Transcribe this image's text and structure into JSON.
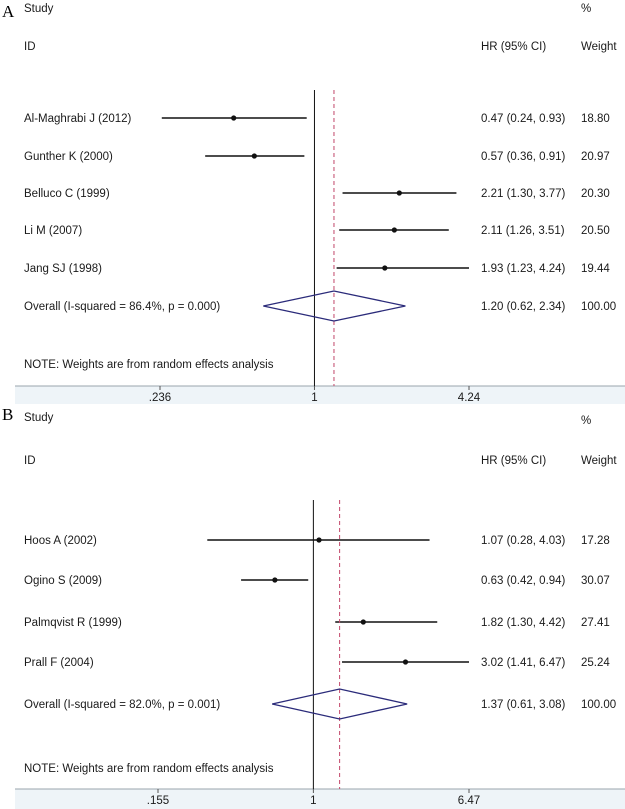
{
  "chart_data": [
    {
      "type": "forest",
      "panel_label": "A",
      "header": {
        "study": "Study",
        "id": "ID",
        "pct": "%",
        "hr": "HR (95% CI)",
        "weight": "Weight"
      },
      "x_scale": "log",
      "xlim": [
        0.236,
        4.24
      ],
      "ticks": [
        {
          "value": 0.236,
          "label": ".236"
        },
        {
          "value": 1,
          "label": "1"
        },
        {
          "value": 4.24,
          "label": "4.24"
        }
      ],
      "studies": [
        {
          "name": "Al-Maghrabi J (2012)",
          "hr": 0.47,
          "lower": 0.24,
          "upper": 0.93,
          "ci_text": "0.47 (0.24, 0.93)",
          "weight": "18.80"
        },
        {
          "name": "Gunther K (2000)",
          "hr": 0.57,
          "lower": 0.36,
          "upper": 0.91,
          "ci_text": "0.57 (0.36, 0.91)",
          "weight": "20.97"
        },
        {
          "name": "Belluco C (1999)",
          "hr": 2.21,
          "lower": 1.3,
          "upper": 3.77,
          "ci_text": "2.21 (1.30, 3.77)",
          "weight": "20.30"
        },
        {
          "name": "Li M (2007)",
          "hr": 2.11,
          "lower": 1.26,
          "upper": 3.51,
          "ci_text": "2.11 (1.26, 3.51)",
          "weight": "20.50"
        },
        {
          "name": "Jang SJ (1998)",
          "hr": 1.93,
          "lower": 1.23,
          "upper": 4.24,
          "ci_text": "1.93 (1.23, 4.24)",
          "weight": "19.44"
        }
      ],
      "overall": {
        "label": "Overall  (I-squared = 86.4%, p = 0.000)",
        "hr": 1.2,
        "lower": 0.62,
        "upper": 2.34,
        "ci_text": "1.20 (0.62, 2.34)",
        "weight": "100.00"
      },
      "note": "NOTE: Weights are from random effects analysis"
    },
    {
      "type": "forest",
      "panel_label": "B",
      "header": {
        "study": "Study",
        "id": "ID",
        "pct": "%",
        "hr": "HR (95% CI)",
        "weight": "Weight"
      },
      "x_scale": "log",
      "xlim": [
        0.155,
        6.47
      ],
      "ticks": [
        {
          "value": 0.155,
          "label": ".155"
        },
        {
          "value": 1,
          "label": "1"
        },
        {
          "value": 6.47,
          "label": "6.47"
        }
      ],
      "studies": [
        {
          "name": "Hoos A (2002)",
          "hr": 1.07,
          "lower": 0.28,
          "upper": 4.03,
          "ci_text": "1.07 (0.28, 4.03)",
          "weight": "17.28"
        },
        {
          "name": "Ogino S (2009)",
          "hr": 0.63,
          "lower": 0.42,
          "upper": 0.94,
          "ci_text": "0.63 (0.42, 0.94)",
          "weight": "30.07"
        },
        {
          "name": "Palmqvist R (1999)",
          "hr": 1.82,
          "lower": 1.3,
          "upper": 4.42,
          "ci_text": "1.82 (1.30, 4.42)",
          "weight": "27.41"
        },
        {
          "name": "Prall F (2004)",
          "hr": 3.02,
          "lower": 1.41,
          "upper": 6.47,
          "ci_text": "3.02 (1.41, 6.47)",
          "weight": "25.24"
        }
      ],
      "overall": {
        "label": "Overall  (I-squared = 82.0%, p = 0.001)",
        "hr": 1.37,
        "lower": 0.61,
        "upper": 3.08,
        "ci_text": "1.37 (0.61, 3.08)",
        "weight": "100.00"
      },
      "note": "NOTE: Weights are from random effects analysis"
    }
  ],
  "colors": {
    "diamond": "#2b2b7a",
    "dashed_line": "#c2476a",
    "axis_band": "#eef4f8",
    "line": "#111111"
  }
}
